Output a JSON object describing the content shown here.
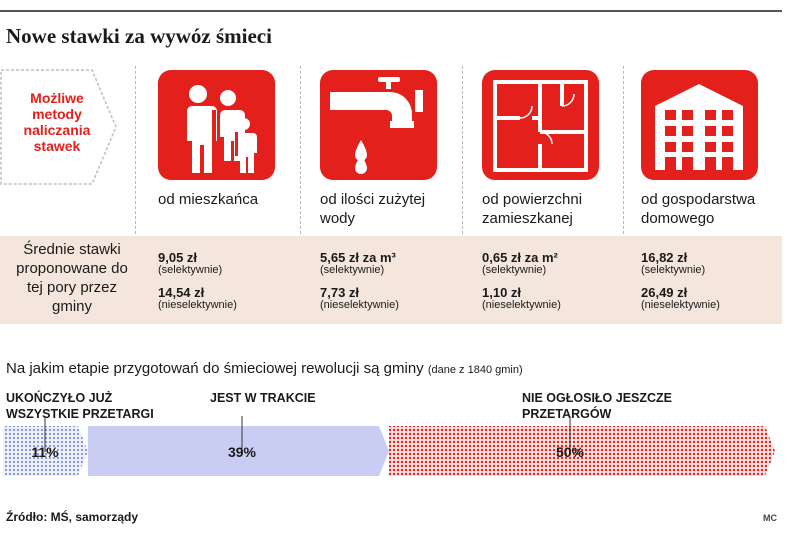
{
  "title": "Nowe stawki za wywóz śmieci",
  "methods_label": "Możliwe metody naliczania stawek",
  "rates_label": "Średnie stawki proponowane do tej pory przez gminy",
  "icons": [
    "family-icon",
    "faucet-icon",
    "floor-plan-icon",
    "building-icon"
  ],
  "colors": {
    "accent": "#e3201b",
    "band": "#f4e6dc",
    "done": "#8ca0d8",
    "in_progress": "#c9cdf3",
    "not_announced": "#e3201b"
  },
  "methods": [
    {
      "label": "od mieszkańca",
      "rate_selective": "9,05 zł",
      "note_selective": "(selektywnie)",
      "rate_nonselective": "14,54 zł",
      "note_nonselective": "(nieselektywnie)"
    },
    {
      "label": "od ilości zużytej wody",
      "rate_selective": "5,65 zł za m³",
      "note_selective": "(selektywnie)",
      "rate_nonselective": "7,73 zł",
      "note_nonselective": "(nieselektywnie)"
    },
    {
      "label": "od powierzchni zamieszkanej",
      "rate_selective": "0,65 zł za m²",
      "note_selective": "(selektywnie)",
      "rate_nonselective": "1,10 zł",
      "note_nonselective": "(nieselektywnie)"
    },
    {
      "label": "od gospodarstwa domowego",
      "rate_selective": "16,82 zł",
      "note_selective": "(selektywnie)",
      "rate_nonselective": "26,49 zł",
      "note_nonselective": "(nieselektywnie)"
    }
  ],
  "chart_data": {
    "type": "bar",
    "title": "Na jakim etapie przygotowań do śmieciowej rewolucji są gminy",
    "subtitle": "(dane z 1840 gmin)",
    "unit": "%",
    "categories": [
      "UKOŃCZYŁO JUŻ WSZYSTKIE PRZETARGI",
      "JEST W TRAKCIE",
      "NIE OGŁOSIŁO JESZCZE PRZETARGÓW"
    ],
    "values": [
      11,
      39,
      50
    ],
    "value_labels": [
      "11%",
      "39%",
      "50%"
    ]
  },
  "source": "Źródło: MŚ, samorządy",
  "credit": "MC"
}
